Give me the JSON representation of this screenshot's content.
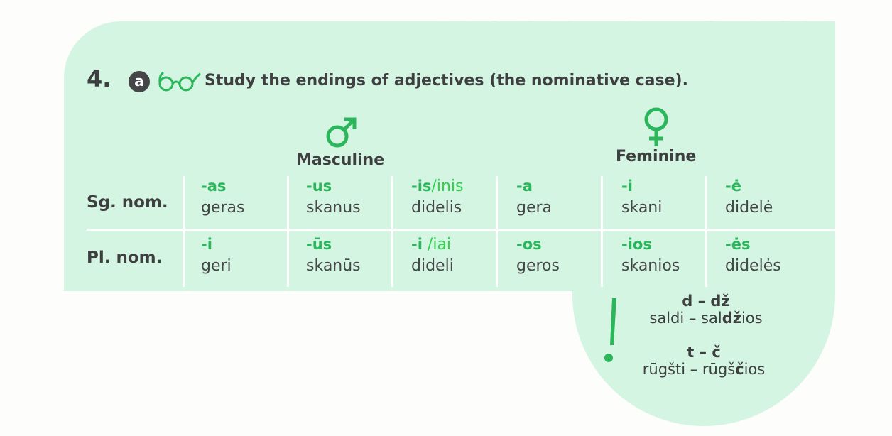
{
  "exercise": {
    "number": "4.",
    "letter": "a",
    "instruction": "Study the endings of adjectives (the nominative case)."
  },
  "genders": {
    "masculine": {
      "label": "Masculine",
      "symbol": "♂",
      "icon": "male-symbol-icon"
    },
    "feminine": {
      "label": "Feminine",
      "symbol": "♀",
      "icon": "female-symbol-icon"
    }
  },
  "table": {
    "rows": [
      {
        "label": "Sg. nom.",
        "cells": [
          {
            "ending": "-as",
            "alt": "",
            "word": "geras"
          },
          {
            "ending": "-us",
            "alt": "",
            "word": "skanus"
          },
          {
            "ending": "-is",
            "alt": "/inis",
            "word": "didelis"
          },
          {
            "ending": "-a",
            "alt": "",
            "word": "gera"
          },
          {
            "ending": "-i",
            "alt": "",
            "word": "skani"
          },
          {
            "ending": "-ė",
            "alt": "",
            "word": "didelė"
          }
        ]
      },
      {
        "label": "Pl. nom.",
        "cells": [
          {
            "ending": "-i",
            "alt": "",
            "word": "geri"
          },
          {
            "ending": "-ūs",
            "alt": "",
            "word": "skanūs"
          },
          {
            "ending": "-i",
            "alt": " /iai",
            "word": "dideli"
          },
          {
            "ending": "-os",
            "alt": "",
            "word": "geros"
          },
          {
            "ending": "-ios",
            "alt": "",
            "word": "skanios"
          },
          {
            "ending": "-ės",
            "alt": "",
            "word": "didelės"
          }
        ]
      }
    ]
  },
  "note": {
    "icon": "exclamation-icon",
    "rules": [
      {
        "head": "d – dž",
        "ex_pre": "saldi – sal",
        "ex_bold": "dž",
        "ex_post": "ios"
      },
      {
        "head": "t – č",
        "ex_pre": "rūgšti – rūgš",
        "ex_bold": "č",
        "ex_post": "ios"
      }
    ]
  },
  "colors": {
    "panel": "#d5f5e3",
    "accent_green": "#2bb65b",
    "text": "#3d3f40"
  }
}
